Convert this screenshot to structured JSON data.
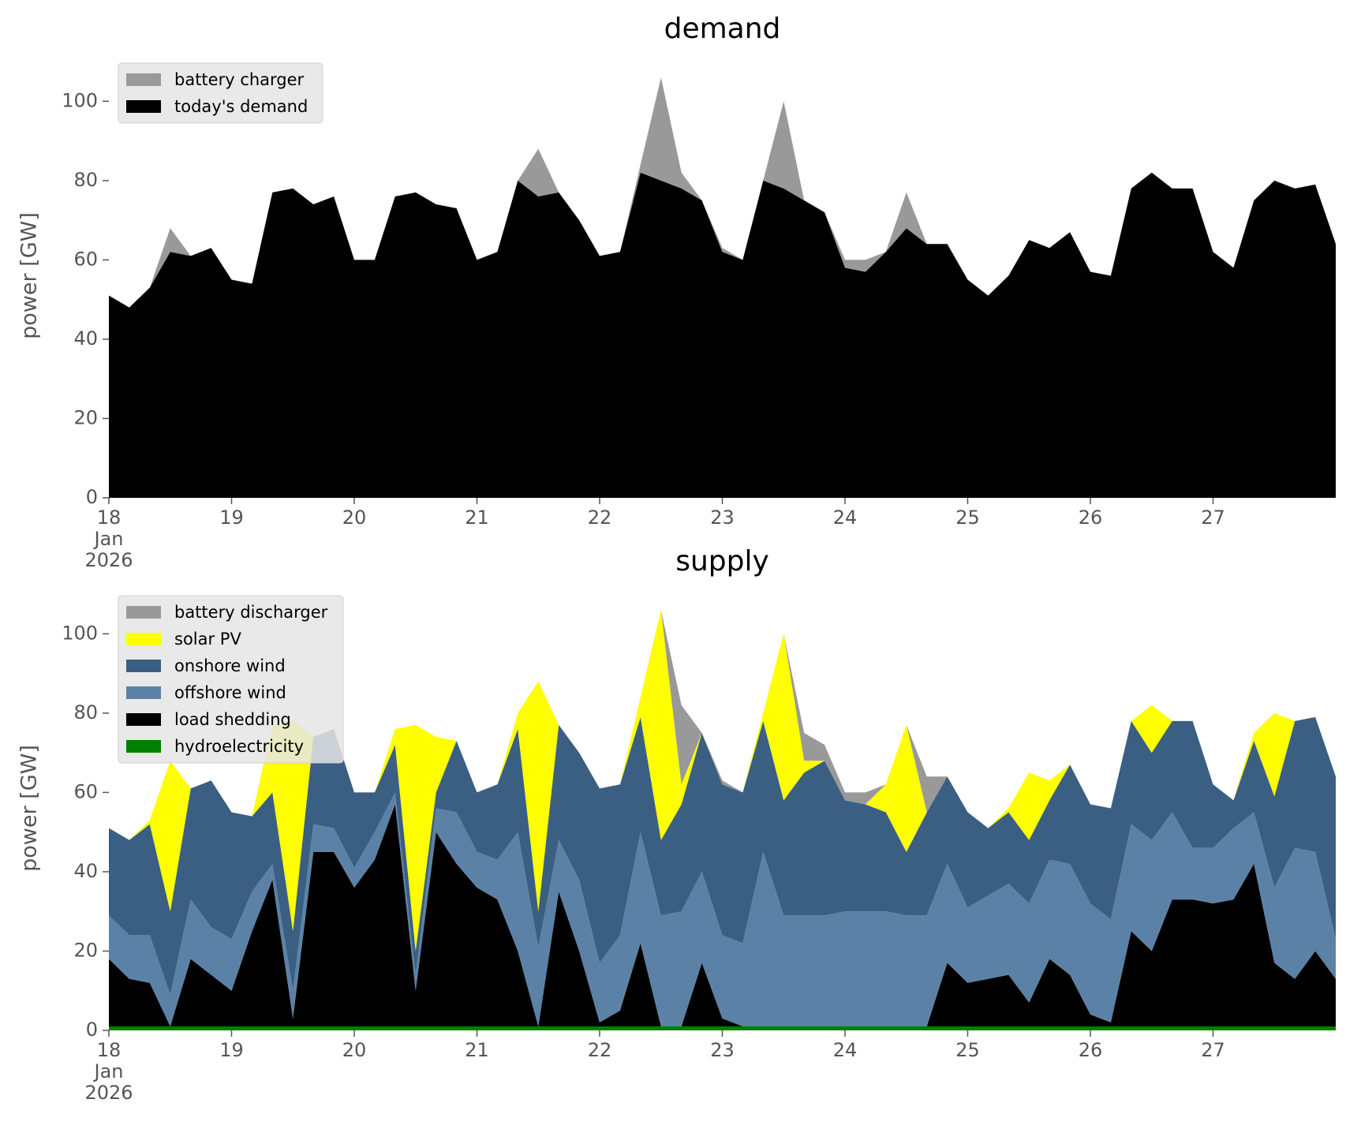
{
  "chart_data": [
    {
      "type": "area",
      "stacked": true,
      "title": "demand",
      "y_label": "power [GW]",
      "x": [
        "2026-01-18 00:00",
        "2026-01-18 04:00",
        "2026-01-18 08:00",
        "2026-01-18 12:00",
        "2026-01-18 16:00",
        "2026-01-18 20:00",
        "2026-01-19 00:00",
        "2026-01-19 04:00",
        "2026-01-19 08:00",
        "2026-01-19 12:00",
        "2026-01-19 16:00",
        "2026-01-19 20:00",
        "2026-01-20 00:00",
        "2026-01-20 04:00",
        "2026-01-20 08:00",
        "2026-01-20 12:00",
        "2026-01-20 16:00",
        "2026-01-20 20:00",
        "2026-01-21 00:00",
        "2026-01-21 04:00",
        "2026-01-21 08:00",
        "2026-01-21 12:00",
        "2026-01-21 16:00",
        "2026-01-21 20:00",
        "2026-01-22 00:00",
        "2026-01-22 04:00",
        "2026-01-22 08:00",
        "2026-01-22 12:00",
        "2026-01-22 16:00",
        "2026-01-22 20:00",
        "2026-01-23 00:00",
        "2026-01-23 04:00",
        "2026-01-23 08:00",
        "2026-01-23 12:00",
        "2026-01-23 16:00",
        "2026-01-23 20:00",
        "2026-01-24 00:00",
        "2026-01-24 04:00",
        "2026-01-24 08:00",
        "2026-01-24 12:00",
        "2026-01-24 16:00",
        "2026-01-24 20:00",
        "2026-01-25 00:00",
        "2026-01-25 04:00",
        "2026-01-25 08:00",
        "2026-01-25 12:00",
        "2026-01-25 16:00",
        "2026-01-25 20:00",
        "2026-01-26 00:00",
        "2026-01-26 04:00",
        "2026-01-26 08:00",
        "2026-01-26 12:00",
        "2026-01-26 16:00",
        "2026-01-26 20:00",
        "2026-01-27 00:00",
        "2026-01-27 04:00",
        "2026-01-27 08:00",
        "2026-01-27 12:00",
        "2026-01-27 16:00",
        "2026-01-27 20:00",
        "2026-01-28 00:00"
      ],
      "series": [
        {
          "name": "today's demand",
          "color": "#000000",
          "values": [
            51,
            48,
            53,
            62,
            61,
            63,
            55,
            54,
            77,
            78,
            74,
            76,
            60,
            60,
            76,
            77,
            74,
            73,
            60,
            62,
            80,
            76,
            77,
            70,
            61,
            62,
            82,
            80,
            78,
            75,
            62,
            60,
            80,
            78,
            75,
            72,
            58,
            57,
            62,
            68,
            64,
            64,
            55,
            51,
            56,
            65,
            63,
            67,
            57,
            56,
            78,
            82,
            78,
            78,
            62,
            58,
            75,
            80,
            78,
            79,
            64
          ]
        },
        {
          "name": "battery charger",
          "color": "#999999",
          "values": [
            0,
            0,
            0,
            6,
            0,
            0,
            0,
            0,
            0,
            0,
            0,
            0,
            0,
            0,
            0,
            0,
            0,
            0,
            0,
            0,
            0,
            12,
            0,
            0,
            0,
            0,
            2,
            26,
            4,
            0,
            1,
            0,
            0,
            22,
            0,
            0,
            2,
            3,
            0,
            9,
            0,
            0,
            0,
            0,
            0,
            0,
            0,
            0,
            0,
            0,
            0,
            0,
            0,
            0,
            0,
            0,
            0,
            0,
            0,
            0,
            0
          ]
        }
      ],
      "xlim": [
        "2026-01-18 00:00",
        "2026-01-28 00:00"
      ],
      "xticks": [
        {
          "value": "2026-01-18 00:00",
          "label": "18\nJan\n2026"
        },
        {
          "value": "2026-01-19 00:00",
          "label": "19"
        },
        {
          "value": "2026-01-20 00:00",
          "label": "20"
        },
        {
          "value": "2026-01-21 00:00",
          "label": "21"
        },
        {
          "value": "2026-01-22 00:00",
          "label": "22"
        },
        {
          "value": "2026-01-23 00:00",
          "label": "23"
        },
        {
          "value": "2026-01-24 00:00",
          "label": "24"
        },
        {
          "value": "2026-01-25 00:00",
          "label": "25"
        },
        {
          "value": "2026-01-26 00:00",
          "label": "26"
        },
        {
          "value": "2026-01-27 00:00",
          "label": "27"
        }
      ],
      "ylim": [
        0,
        112
      ],
      "yticks": [
        0,
        20,
        40,
        60,
        80,
        100
      ],
      "legend": "upper left",
      "grid": false
    },
    {
      "type": "area",
      "stacked": true,
      "title": "supply",
      "y_label": "power [GW]",
      "x": [
        "2026-01-18 00:00",
        "2026-01-18 04:00",
        "2026-01-18 08:00",
        "2026-01-18 12:00",
        "2026-01-18 16:00",
        "2026-01-18 20:00",
        "2026-01-19 00:00",
        "2026-01-19 04:00",
        "2026-01-19 08:00",
        "2026-01-19 12:00",
        "2026-01-19 16:00",
        "2026-01-19 20:00",
        "2026-01-20 00:00",
        "2026-01-20 04:00",
        "2026-01-20 08:00",
        "2026-01-20 12:00",
        "2026-01-20 16:00",
        "2026-01-20 20:00",
        "2026-01-21 00:00",
        "2026-01-21 04:00",
        "2026-01-21 08:00",
        "2026-01-21 12:00",
        "2026-01-21 16:00",
        "2026-01-21 20:00",
        "2026-01-22 00:00",
        "2026-01-22 04:00",
        "2026-01-22 08:00",
        "2026-01-22 12:00",
        "2026-01-22 16:00",
        "2026-01-22 20:00",
        "2026-01-23 00:00",
        "2026-01-23 04:00",
        "2026-01-23 08:00",
        "2026-01-23 12:00",
        "2026-01-23 16:00",
        "2026-01-23 20:00",
        "2026-01-24 00:00",
        "2026-01-24 04:00",
        "2026-01-24 08:00",
        "2026-01-24 12:00",
        "2026-01-24 16:00",
        "2026-01-24 20:00",
        "2026-01-25 00:00",
        "2026-01-25 04:00",
        "2026-01-25 08:00",
        "2026-01-25 12:00",
        "2026-01-25 16:00",
        "2026-01-25 20:00",
        "2026-01-26 00:00",
        "2026-01-26 04:00",
        "2026-01-26 08:00",
        "2026-01-26 12:00",
        "2026-01-26 16:00",
        "2026-01-26 20:00",
        "2026-01-27 00:00",
        "2026-01-27 04:00",
        "2026-01-27 08:00",
        "2026-01-27 12:00",
        "2026-01-27 16:00",
        "2026-01-27 20:00",
        "2026-01-28 00:00"
      ],
      "series": [
        {
          "name": "hydroelectricity",
          "color": "#008000",
          "values": [
            1,
            1,
            1,
            1,
            1,
            1,
            1,
            1,
            1,
            1,
            1,
            1,
            1,
            1,
            1,
            1,
            1,
            1,
            1,
            1,
            1,
            1,
            1,
            1,
            1,
            1,
            1,
            1,
            1,
            1,
            1,
            1,
            1,
            1,
            1,
            1,
            1,
            1,
            1,
            1,
            1,
            1,
            1,
            1,
            1,
            1,
            1,
            1,
            1,
            1,
            1,
            1,
            1,
            1,
            1,
            1,
            1,
            1,
            1,
            1,
            1
          ]
        },
        {
          "name": "load shedding",
          "color": "#000000",
          "values": [
            17,
            12,
            11,
            0,
            17,
            13,
            9,
            24,
            37,
            2,
            44,
            44,
            35,
            42,
            56,
            9,
            49,
            41,
            35,
            32,
            19,
            0,
            34,
            19,
            1,
            4,
            21,
            0,
            0,
            16,
            2,
            0,
            0,
            0,
            0,
            0,
            0,
            0,
            0,
            0,
            0,
            16,
            11,
            12,
            13,
            6,
            17,
            13,
            3,
            1,
            24,
            19,
            32,
            32,
            31,
            32,
            41,
            16,
            12,
            19,
            12
          ]
        },
        {
          "name": "offshore wind",
          "color": "#5b82a6",
          "values": [
            11,
            11,
            12,
            8,
            15,
            12,
            13,
            10,
            4,
            7,
            7,
            6,
            5,
            7,
            3,
            4,
            6,
            13,
            9,
            10,
            30,
            20,
            13,
            18,
            15,
            19,
            28,
            28,
            29,
            23,
            21,
            21,
            44,
            28,
            28,
            28,
            29,
            29,
            29,
            28,
            28,
            25,
            19,
            21,
            23,
            25,
            25,
            28,
            28,
            26,
            27,
            28,
            22,
            13,
            14,
            18,
            13,
            19,
            33,
            25,
            10
          ]
        },
        {
          "name": "onshore wind",
          "color": "#3b5f82",
          "values": [
            22,
            24,
            28,
            21,
            28,
            37,
            32,
            19,
            18,
            15,
            22,
            25,
            19,
            10,
            12,
            6,
            4,
            18,
            15,
            19,
            26,
            9,
            29,
            32,
            44,
            38,
            29,
            19,
            27,
            35,
            38,
            38,
            33,
            29,
            36,
            39,
            28,
            27,
            25,
            16,
            26,
            22,
            24,
            17,
            18,
            16,
            15,
            25,
            25,
            28,
            26,
            22,
            23,
            32,
            16,
            7,
            18,
            23,
            32,
            34,
            41
          ]
        },
        {
          "name": "solar PV",
          "color": "#ffff00",
          "values": [
            0,
            0,
            1,
            38,
            0,
            0,
            0,
            0,
            17,
            53,
            0,
            0,
            0,
            0,
            4,
            57,
            14,
            0,
            0,
            0,
            4,
            58,
            0,
            0,
            0,
            0,
            5,
            58,
            5,
            0,
            0,
            0,
            2,
            42,
            3,
            0,
            0,
            0,
            7,
            32,
            0,
            0,
            0,
            0,
            1,
            17,
            5,
            0,
            0,
            0,
            0,
            12,
            0,
            0,
            0,
            0,
            2,
            21,
            0,
            0,
            0
          ]
        },
        {
          "name": "battery discharger",
          "color": "#999999",
          "values": [
            0,
            0,
            0,
            0,
            0,
            0,
            0,
            0,
            0,
            0,
            0,
            0,
            0,
            0,
            0,
            0,
            0,
            0,
            0,
            0,
            0,
            0,
            0,
            0,
            0,
            0,
            0,
            0,
            20,
            0,
            1,
            0,
            0,
            0,
            7,
            4,
            2,
            3,
            0,
            0,
            9,
            0,
            0,
            0,
            0,
            0,
            0,
            0,
            0,
            0,
            0,
            0,
            0,
            0,
            0,
            0,
            0,
            0,
            0,
            0,
            0
          ]
        }
      ],
      "xlim": [
        "2026-01-18 00:00",
        "2026-01-28 00:00"
      ],
      "xticks": [
        {
          "value": "2026-01-18 00:00",
          "label": "18\nJan\n2026"
        },
        {
          "value": "2026-01-19 00:00",
          "label": "19"
        },
        {
          "value": "2026-01-20 00:00",
          "label": "20"
        },
        {
          "value": "2026-01-21 00:00",
          "label": "21"
        },
        {
          "value": "2026-01-22 00:00",
          "label": "22"
        },
        {
          "value": "2026-01-23 00:00",
          "label": "23"
        },
        {
          "value": "2026-01-24 00:00",
          "label": "24"
        },
        {
          "value": "2026-01-25 00:00",
          "label": "25"
        },
        {
          "value": "2026-01-26 00:00",
          "label": "26"
        },
        {
          "value": "2026-01-27 00:00",
          "label": "27"
        }
      ],
      "ylim": [
        0,
        112
      ],
      "yticks": [
        0,
        20,
        40,
        60,
        80,
        100
      ],
      "legend": "upper left",
      "grid": false
    }
  ]
}
